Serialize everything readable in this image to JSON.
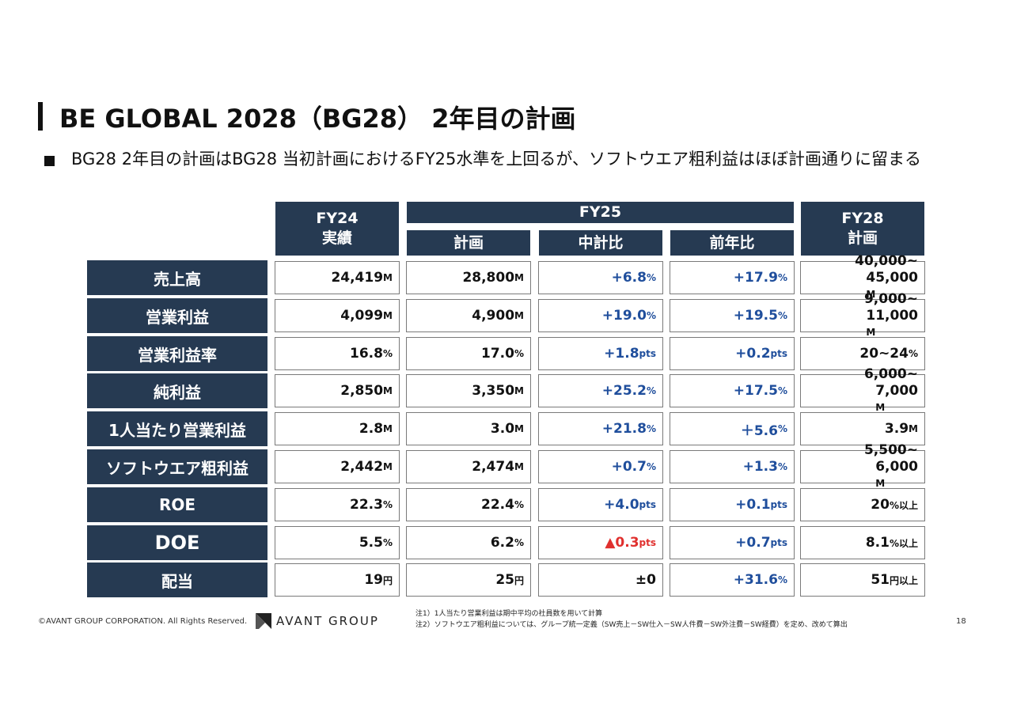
{
  "title": "BE GLOBAL 2028（BG28） 2年目の計画",
  "subtitle": "BG28 2年目の計画はBG28 当初計画におけるFY25水準を上回るが、ソフトウエア粗利益はほぼ計画通りに留まる",
  "headers": {
    "fy24_line1": "FY24",
    "fy24_line2": "実績",
    "fy25": "FY25",
    "fy25_plan": "計画",
    "fy25_mid": "中計比",
    "fy25_yoy": "前年比",
    "fy28_line1": "FY28",
    "fy28_line2": "計画"
  },
  "rows": [
    {
      "label": "売上高",
      "fy24": {
        "v": "24,419",
        "u": "M"
      },
      "plan": {
        "v": "28,800",
        "u": "M"
      },
      "mid": {
        "v": "+6.8",
        "u": "%"
      },
      "yoy": {
        "v": "+17.9",
        "u": "%"
      },
      "fy28": {
        "l1": "40,000~",
        "l2": "45,000",
        "u": "M"
      }
    },
    {
      "label": "営業利益",
      "fy24": {
        "v": "4,099",
        "u": "M"
      },
      "plan": {
        "v": "4,900",
        "u": "M"
      },
      "mid": {
        "v": "+19.0",
        "u": "%"
      },
      "yoy": {
        "v": "+19.5",
        "u": "%"
      },
      "fy28": {
        "l1": "9,000~",
        "l2": "11,000",
        "u": "M"
      }
    },
    {
      "label": "営業利益率",
      "fy24": {
        "v": "16.8",
        "u": "%"
      },
      "plan": {
        "v": "17.0",
        "u": "%"
      },
      "mid": {
        "v": "+1.8",
        "u": "pts"
      },
      "yoy": {
        "v": "+0.2",
        "u": "pts"
      },
      "fy28": {
        "v": "20~24",
        "u": "%"
      }
    },
    {
      "label": "純利益",
      "fy24": {
        "v": "2,850",
        "u": "M"
      },
      "plan": {
        "v": "3,350",
        "u": "M"
      },
      "mid": {
        "v": "+25.2",
        "u": "%"
      },
      "yoy": {
        "v": "+17.5",
        "u": "%"
      },
      "fy28": {
        "l1": "6,000~",
        "l2": "7,000",
        "u": "M"
      }
    },
    {
      "label": "1人当たり営業利益",
      "fy24": {
        "v": "2.8",
        "u": "M"
      },
      "plan": {
        "v": "3.0",
        "u": "M"
      },
      "mid": {
        "v": "+21.8",
        "u": "%"
      },
      "yoy": {
        "v": "＋5.6",
        "u": "%"
      },
      "fy28": {
        "v": "3.9",
        "u": "M"
      }
    },
    {
      "label": "ソフトウエア粗利益",
      "fy24": {
        "v": "2,442",
        "u": "M"
      },
      "plan": {
        "v": "2,474",
        "u": "M"
      },
      "mid": {
        "v": "+0.7",
        "u": "%"
      },
      "yoy": {
        "v": "+1.3",
        "u": "%"
      },
      "fy28": {
        "l1": "5,500~",
        "l2": "6,000",
        "u": "M"
      }
    },
    {
      "label": "ROE",
      "fy24": {
        "v": "22.3",
        "u": "%"
      },
      "plan": {
        "v": "22.4",
        "u": "%"
      },
      "mid": {
        "v": "+4.0",
        "u": "pts"
      },
      "yoy": {
        "v": "+0.1",
        "u": "pts"
      },
      "fy28": {
        "v": "20",
        "u": "%以上"
      }
    },
    {
      "label": "DOE",
      "fy24": {
        "v": "5.5",
        "u": "%"
      },
      "plan": {
        "v": "6.2",
        "u": "%"
      },
      "mid": {
        "v": "▲0.3",
        "u": "pts"
      },
      "yoy": {
        "v": "+0.7",
        "u": "pts"
      },
      "fy28": {
        "v": "8.1",
        "u": "%以上"
      }
    },
    {
      "label": "配当",
      "fy24": {
        "v": "19",
        "u": "円"
      },
      "plan": {
        "v": "25",
        "u": "円"
      },
      "mid": {
        "v": "±0",
        "u": ""
      },
      "yoy": {
        "v": "+31.6",
        "u": "%"
      },
      "fy28": {
        "v": "51",
        "u": "円以上"
      }
    }
  ],
  "notes": [
    "注1）1人当たり営業利益は期中平均の社員数を用いて計算",
    "注2）ソフトウエア粗利益については、グループ統一定義（SW売上－SW仕入－SW人件費－SW外注費－SW経費）を定め、改めて算出"
  ],
  "footer": {
    "copyright": "©AVANT GROUP CORPORATION. All Rights Reserved.",
    "logo_text": "AVANT GROUP",
    "page_number": "18"
  },
  "colors": {
    "header_bg": "#263a52",
    "positive": "#1f4e9c",
    "negative": "#e0302e"
  }
}
